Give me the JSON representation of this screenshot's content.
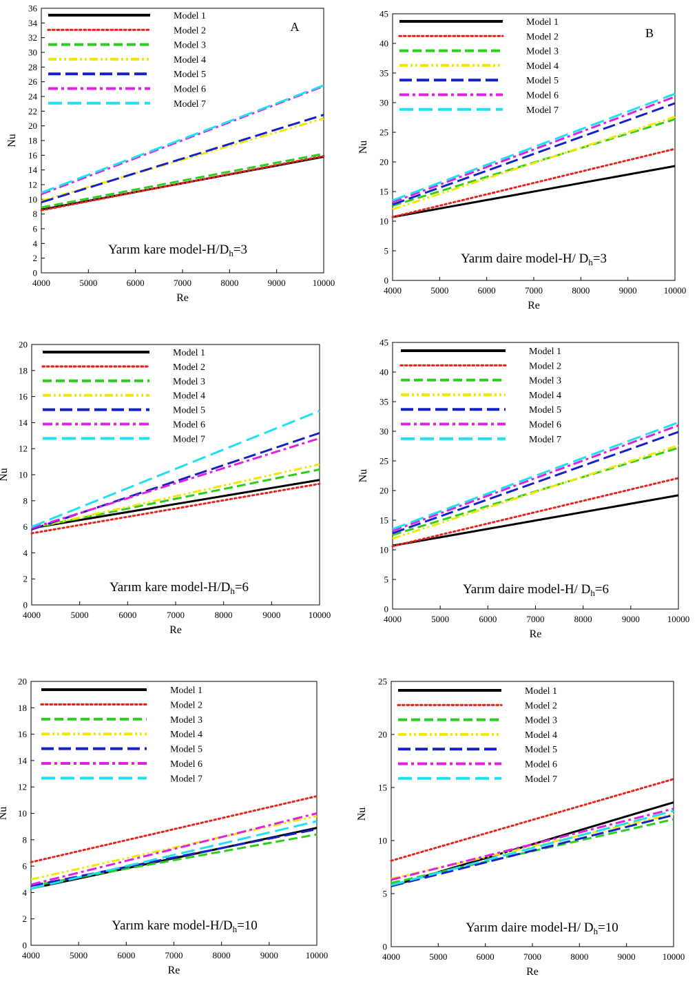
{
  "figure": {
    "style": {
      "line_colors": [
        "#000000",
        "#e8231c",
        "#2ecc1f",
        "#f0e800",
        "#1520c8",
        "#e020e0",
        "#1ee0ee"
      ]
    }
  },
  "chart_data": [
    {
      "type": "line",
      "panel_letter": "A",
      "caption": "Yarım kare model-H/D",
      "caption_sub": "h",
      "caption_end": "=3",
      "xlabel": "Re",
      "ylabel": "Nu",
      "xlim": [
        4000,
        10000
      ],
      "ylim": [
        0,
        36
      ],
      "xticks": [
        4000,
        5000,
        6000,
        7000,
        8000,
        9000,
        10000
      ],
      "yticks": [
        0,
        2,
        4,
        6,
        8,
        10,
        12,
        14,
        16,
        18,
        20,
        22,
        24,
        26,
        28,
        30,
        32,
        34,
        36
      ],
      "legend": "top-left",
      "x": [
        4000,
        10000
      ],
      "series": [
        {
          "name": "Model 1",
          "style": "solid",
          "values": [
            8.6,
            15.8
          ]
        },
        {
          "name": "Model 2",
          "style": "dotted",
          "values": [
            8.5,
            15.9
          ]
        },
        {
          "name": "Model 3",
          "style": "dashed",
          "values": [
            8.9,
            16.2
          ]
        },
        {
          "name": "Model 4",
          "style": "dashdotdot",
          "values": [
            9.8,
            21.0
          ]
        },
        {
          "name": "Model 5",
          "style": "longdash",
          "values": [
            9.6,
            21.5
          ]
        },
        {
          "name": "Model 6",
          "style": "dashdot",
          "values": [
            10.7,
            25.4
          ]
        },
        {
          "name": "Model 7",
          "style": "longdash2",
          "values": [
            10.9,
            25.5
          ]
        }
      ]
    },
    {
      "type": "line",
      "panel_letter": "B",
      "caption": "Yarım daire model-H/ D",
      "caption_sub": "h",
      "caption_end": "=3",
      "xlabel": "Re",
      "ylabel": "Nu",
      "xlim": [
        4000,
        10000
      ],
      "ylim": [
        0,
        45
      ],
      "xticks": [
        4000,
        5000,
        6000,
        7000,
        8000,
        9000,
        10000
      ],
      "yticks": [
        0,
        5,
        10,
        15,
        20,
        25,
        30,
        35,
        40,
        45
      ],
      "legend": "top-left",
      "x": [
        4000,
        10000
      ],
      "series": [
        {
          "name": "Model 1",
          "style": "solid",
          "values": [
            10.7,
            19.3
          ]
        },
        {
          "name": "Model 2",
          "style": "dotted",
          "values": [
            10.7,
            22.2
          ]
        },
        {
          "name": "Model 3",
          "style": "dashed",
          "values": [
            12.6,
            27.2
          ]
        },
        {
          "name": "Model 4",
          "style": "dashdotdot",
          "values": [
            12.0,
            27.6
          ]
        },
        {
          "name": "Model 5",
          "style": "longdash",
          "values": [
            12.8,
            29.9
          ]
        },
        {
          "name": "Model 6",
          "style": "dashdot",
          "values": [
            13.2,
            31.0
          ]
        },
        {
          "name": "Model 7",
          "style": "longdash2",
          "values": [
            13.5,
            31.5
          ]
        }
      ]
    },
    {
      "type": "line",
      "panel_letter": "",
      "caption": "Yarım kare model-H/D",
      "caption_sub": "h",
      "caption_end": "=6",
      "xlabel": "Re",
      "ylabel": "Nu",
      "xlim": [
        4000,
        10000
      ],
      "ylim": [
        0,
        20
      ],
      "xticks": [
        4000,
        5000,
        6000,
        7000,
        8000,
        9000,
        10000
      ],
      "yticks": [
        0,
        2,
        4,
        6,
        8,
        10,
        12,
        14,
        16,
        18,
        20
      ],
      "legend": "top-left",
      "x": [
        4000,
        10000
      ],
      "series": [
        {
          "name": "Model 1",
          "style": "solid",
          "values": [
            5.9,
            9.6
          ]
        },
        {
          "name": "Model 2",
          "style": "dotted",
          "values": [
            5.5,
            9.3
          ]
        },
        {
          "name": "Model 3",
          "style": "dashed",
          "values": [
            5.9,
            10.4
          ]
        },
        {
          "name": "Model 4",
          "style": "dashdotdot",
          "values": [
            5.9,
            10.8
          ]
        },
        {
          "name": "Model 5",
          "style": "longdash",
          "values": [
            5.8,
            13.2
          ]
        },
        {
          "name": "Model 6",
          "style": "dashdot",
          "values": [
            5.9,
            12.8
          ]
        },
        {
          "name": "Model 7",
          "style": "longdash2",
          "values": [
            6.0,
            14.9
          ]
        }
      ]
    },
    {
      "type": "line",
      "panel_letter": "",
      "caption": "Yarım daire model-H/ D",
      "caption_sub": "h",
      "caption_end": "=6",
      "xlabel": "Re",
      "ylabel": "Nu",
      "xlim": [
        4000,
        10000
      ],
      "ylim": [
        0,
        45
      ],
      "xticks": [
        4000,
        5000,
        6000,
        7000,
        8000,
        9000,
        10000
      ],
      "yticks": [
        0,
        5,
        10,
        15,
        20,
        25,
        30,
        35,
        40,
        45
      ],
      "legend": "top-left",
      "x": [
        4000,
        10000
      ],
      "series": [
        {
          "name": "Model 1",
          "style": "solid",
          "values": [
            10.7,
            19.2
          ]
        },
        {
          "name": "Model 2",
          "style": "dotted",
          "values": [
            10.6,
            22.1
          ]
        },
        {
          "name": "Model 3",
          "style": "dashed",
          "values": [
            12.5,
            27.2
          ]
        },
        {
          "name": "Model 4",
          "style": "dashdotdot",
          "values": [
            11.9,
            27.6
          ]
        },
        {
          "name": "Model 5",
          "style": "longdash",
          "values": [
            12.8,
            29.9
          ]
        },
        {
          "name": "Model 6",
          "style": "dashdot",
          "values": [
            13.2,
            31.0
          ]
        },
        {
          "name": "Model 7",
          "style": "longdash2",
          "values": [
            13.5,
            31.5
          ]
        }
      ]
    },
    {
      "type": "line",
      "panel_letter": "",
      "caption": "Yarım kare model-H/D",
      "caption_sub": "h",
      "caption_end": "=10",
      "xlabel": "Re",
      "ylabel": "Nu",
      "xlim": [
        4000,
        10000
      ],
      "ylim": [
        0,
        20
      ],
      "xticks": [
        4000,
        5000,
        6000,
        7000,
        8000,
        9000,
        10000
      ],
      "yticks": [
        0,
        2,
        4,
        6,
        8,
        10,
        12,
        14,
        16,
        18,
        20
      ],
      "legend": "top-left",
      "x": [
        4000,
        10000
      ],
      "series": [
        {
          "name": "Model 1",
          "style": "solid",
          "values": [
            4.3,
            8.9
          ]
        },
        {
          "name": "Model 2",
          "style": "dotted",
          "values": [
            6.3,
            11.3
          ]
        },
        {
          "name": "Model 3",
          "style": "dashed",
          "values": [
            4.5,
            8.4
          ]
        },
        {
          "name": "Model 4",
          "style": "dashdotdot",
          "values": [
            5.0,
            9.8
          ]
        },
        {
          "name": "Model 5",
          "style": "longdash",
          "values": [
            4.5,
            8.8
          ]
        },
        {
          "name": "Model 6",
          "style": "dashdot",
          "values": [
            4.6,
            10.0
          ]
        },
        {
          "name": "Model 7",
          "style": "longdash2",
          "values": [
            4.3,
            9.4
          ]
        }
      ]
    },
    {
      "type": "line",
      "panel_letter": "",
      "caption": "Yarım daire model-H/ D",
      "caption_sub": "h",
      "caption_end": "=10",
      "xlabel": "Re",
      "ylabel": "Nu",
      "xlim": [
        4000,
        10000
      ],
      "ylim": [
        0,
        25
      ],
      "xticks": [
        4000,
        5000,
        6000,
        7000,
        8000,
        9000,
        10000
      ],
      "yticks": [
        0,
        5,
        10,
        15,
        20,
        25
      ],
      "legend": "top-left",
      "x": [
        4000,
        10000
      ],
      "series": [
        {
          "name": "Model 1",
          "style": "solid",
          "values": [
            5.7,
            13.6
          ]
        },
        {
          "name": "Model 2",
          "style": "dotted",
          "values": [
            8.1,
            15.8
          ]
        },
        {
          "name": "Model 3",
          "style": "dashed",
          "values": [
            6.0,
            12.0
          ]
        },
        {
          "name": "Model 4",
          "style": "dashdotdot",
          "values": [
            6.4,
            12.5
          ]
        },
        {
          "name": "Model 5",
          "style": "longdash",
          "values": [
            5.7,
            12.4
          ]
        },
        {
          "name": "Model 6",
          "style": "dashdot",
          "values": [
            6.3,
            13.0
          ]
        },
        {
          "name": "Model 7",
          "style": "longdash2",
          "values": [
            5.8,
            12.8
          ]
        }
      ]
    }
  ]
}
